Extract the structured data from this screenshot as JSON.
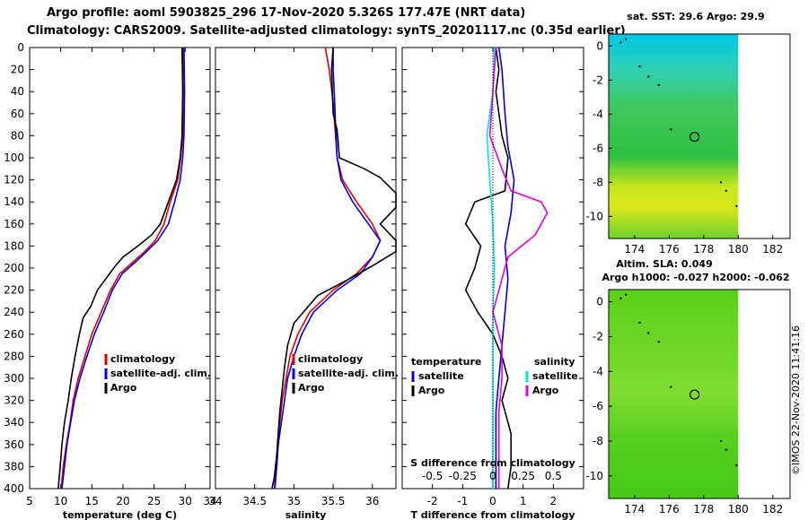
{
  "title_line1": "Argo profile: aoml 5903825_296 17-Nov-2020 5.326S 177.47E (NRT data)",
  "title_line2": "Climatology: CARS2009. Satellite-adjusted climatology: synTS_20201117.nc (0.35d earlier)",
  "footer_stamp": "©IMOS 22-Nov-2020 11:41:16",
  "colors": {
    "climatology": "#e00000",
    "satellite_clim": "#0000e0",
    "argo": "#000000",
    "satellite_diff": "#00e8e8",
    "argo_sal_diff": "#e000e0"
  },
  "chart_data": [
    {
      "type": "line",
      "title": "",
      "xlabel": "temperature (deg C)",
      "ylabel": "",
      "xlim": [
        5,
        34
      ],
      "ylim": [
        400,
        0
      ],
      "xticks": [
        5,
        10,
        15,
        20,
        25,
        30,
        34
      ],
      "yticks": [
        0,
        20,
        40,
        60,
        80,
        100,
        120,
        140,
        160,
        180,
        200,
        220,
        240,
        260,
        280,
        300,
        320,
        340,
        360,
        380,
        400
      ],
      "legend": [
        "climatology",
        "satellite-adj. clim.",
        "Argo"
      ],
      "series": [
        {
          "name": "climatology",
          "color": "#e00000",
          "points": [
            [
              29.6,
              0
            ],
            [
              29.7,
              40
            ],
            [
              29.6,
              80
            ],
            [
              29.3,
              100
            ],
            [
              28.8,
              120
            ],
            [
              27.6,
              140
            ],
            [
              26.6,
              160
            ],
            [
              25.2,
              175
            ],
            [
              23.5,
              185
            ],
            [
              21.5,
              195
            ],
            [
              19.5,
              205
            ],
            [
              18.0,
              220
            ],
            [
              16.5,
              240
            ],
            [
              15.0,
              260
            ],
            [
              13.9,
              280
            ],
            [
              12.8,
              300
            ],
            [
              12.0,
              320
            ],
            [
              11.5,
              340
            ],
            [
              10.9,
              360
            ],
            [
              10.4,
              380
            ],
            [
              10.1,
              400
            ]
          ]
        },
        {
          "name": "satellite-adj. clim.",
          "color": "#0000e0",
          "points": [
            [
              29.8,
              0
            ],
            [
              29.9,
              40
            ],
            [
              29.8,
              80
            ],
            [
              29.6,
              100
            ],
            [
              29.2,
              120
            ],
            [
              28.3,
              140
            ],
            [
              27.3,
              160
            ],
            [
              25.6,
              175
            ],
            [
              23.8,
              185
            ],
            [
              21.9,
              195
            ],
            [
              19.9,
              205
            ],
            [
              18.3,
              220
            ],
            [
              16.9,
              240
            ],
            [
              15.4,
              260
            ],
            [
              14.2,
              280
            ],
            [
              13.1,
              300
            ],
            [
              12.2,
              320
            ],
            [
              11.6,
              340
            ],
            [
              11.0,
              360
            ],
            [
              10.6,
              380
            ],
            [
              10.2,
              400
            ]
          ]
        },
        {
          "name": "Argo",
          "color": "#000000",
          "points": [
            [
              29.5,
              0
            ],
            [
              29.6,
              40
            ],
            [
              29.5,
              80
            ],
            [
              29.2,
              100
            ],
            [
              28.6,
              120
            ],
            [
              27.3,
              140
            ],
            [
              26.0,
              160
            ],
            [
              24.6,
              170
            ],
            [
              22.4,
              180
            ],
            [
              20.0,
              190
            ],
            [
              18.5,
              200
            ],
            [
              17.2,
              210
            ],
            [
              15.9,
              220
            ],
            [
              14.8,
              235
            ],
            [
              13.6,
              245
            ],
            [
              13.0,
              260
            ],
            [
              12.3,
              280
            ],
            [
              11.7,
              300
            ],
            [
              11.2,
              320
            ],
            [
              10.6,
              340
            ],
            [
              10.2,
              360
            ],
            [
              9.9,
              380
            ],
            [
              9.6,
              400
            ]
          ]
        }
      ]
    },
    {
      "type": "line",
      "title": "",
      "xlabel": "salinity",
      "ylabel": "",
      "xlim": [
        34,
        36.3
      ],
      "ylim": [
        400,
        0
      ],
      "xticks": [
        34,
        34.5,
        35,
        35.5,
        36
      ],
      "legend": [
        "climatology",
        "satellite-adj. clim.",
        "Argo"
      ],
      "series": [
        {
          "name": "climatology",
          "color": "#e00000",
          "points": [
            [
              35.4,
              0
            ],
            [
              35.45,
              20
            ],
            [
              35.5,
              50
            ],
            [
              35.52,
              70
            ],
            [
              35.55,
              100
            ],
            [
              35.62,
              120
            ],
            [
              35.8,
              140
            ],
            [
              36.0,
              160
            ],
            [
              36.1,
              175
            ],
            [
              36.0,
              190
            ],
            [
              35.8,
              205
            ],
            [
              35.5,
              220
            ],
            [
              35.2,
              240
            ],
            [
              35.05,
              260
            ],
            [
              34.95,
              280
            ],
            [
              34.9,
              300
            ],
            [
              34.85,
              320
            ],
            [
              34.82,
              340
            ],
            [
              34.8,
              360
            ],
            [
              34.78,
              380
            ],
            [
              34.76,
              400
            ]
          ]
        },
        {
          "name": "satellite-adj. clim.",
          "color": "#0000e0",
          "points": [
            [
              35.5,
              0
            ],
            [
              35.5,
              20
            ],
            [
              35.52,
              50
            ],
            [
              35.53,
              70
            ],
            [
              35.55,
              100
            ],
            [
              35.6,
              120
            ],
            [
              35.75,
              140
            ],
            [
              35.95,
              160
            ],
            [
              36.1,
              175
            ],
            [
              36.0,
              190
            ],
            [
              35.85,
              205
            ],
            [
              35.55,
              220
            ],
            [
              35.25,
              240
            ],
            [
              35.1,
              260
            ],
            [
              35.0,
              280
            ],
            [
              34.92,
              300
            ],
            [
              34.88,
              320
            ],
            [
              34.84,
              340
            ],
            [
              34.8,
              360
            ],
            [
              34.78,
              380
            ],
            [
              34.75,
              400
            ]
          ]
        },
        {
          "name": "Argo",
          "color": "#000000",
          "points": [
            [
              35.5,
              0
            ],
            [
              35.48,
              20
            ],
            [
              35.5,
              60
            ],
            [
              35.55,
              75
            ],
            [
              35.58,
              100
            ],
            [
              35.9,
              110
            ],
            [
              36.1,
              118
            ],
            [
              36.3,
              132
            ],
            [
              36.3,
              145
            ],
            [
              36.1,
              160
            ],
            [
              36.3,
              175
            ],
            [
              36.3,
              185
            ],
            [
              36.0,
              198
            ],
            [
              35.7,
              210
            ],
            [
              35.3,
              225
            ],
            [
              35.0,
              250
            ],
            [
              34.92,
              270
            ],
            [
              34.88,
              290
            ],
            [
              34.85,
              310
            ],
            [
              34.82,
              330
            ],
            [
              34.8,
              350
            ],
            [
              34.78,
              370
            ],
            [
              34.75,
              390
            ],
            [
              34.72,
              400
            ]
          ]
        }
      ]
    },
    {
      "type": "line",
      "title": "",
      "xlabel": "T difference from climatology",
      "xlabel2": "S difference from climatology",
      "ylabel": "",
      "xlim": [
        -3,
        3
      ],
      "ylim": [
        400,
        0
      ],
      "xticks": [
        -2,
        -1,
        0,
        1,
        2
      ],
      "xticks_top": [
        "-0.5",
        "-0.25",
        "0",
        "0.25",
        "0.5"
      ],
      "legend_temperature": {
        "heading": "temperature",
        "items": [
          "satellite",
          "Argo"
        ]
      },
      "legend_salinity": {
        "heading": "salinity",
        "items": [
          "satellite",
          "Argo"
        ]
      },
      "series": [
        {
          "name": "temperature satellite",
          "color": "#0000e0",
          "points": [
            [
              0.2,
              0
            ],
            [
              0.3,
              20
            ],
            [
              0.4,
              60
            ],
            [
              0.5,
              90
            ],
            [
              0.7,
              120
            ],
            [
              0.6,
              150
            ],
            [
              0.4,
              180
            ],
            [
              0.5,
              210
            ],
            [
              0.4,
              240
            ],
            [
              0.3,
              270
            ],
            [
              0.2,
              300
            ],
            [
              0.1,
              330
            ],
            [
              0.1,
              360
            ],
            [
              0.1,
              400
            ]
          ]
        },
        {
          "name": "temperature Argo",
          "color": "#000000",
          "points": [
            [
              0.1,
              0
            ],
            [
              0.2,
              20
            ],
            [
              0.1,
              40
            ],
            [
              0.3,
              80
            ],
            [
              0.5,
              100
            ],
            [
              0.4,
              130
            ],
            [
              -0.6,
              140
            ],
            [
              -0.9,
              160
            ],
            [
              -0.4,
              180
            ],
            [
              -0.6,
              200
            ],
            [
              -0.9,
              220
            ],
            [
              -0.5,
              240
            ],
            [
              0.0,
              260
            ],
            [
              0.3,
              280
            ],
            [
              0.5,
              300
            ],
            [
              0.3,
              320
            ],
            [
              0.6,
              350
            ],
            [
              0.6,
              380
            ],
            [
              0.5,
              400
            ]
          ]
        },
        {
          "name": "salinity satellite",
          "color": "#00e8e8",
          "points": [
            [
              0.05,
              0
            ],
            [
              0.0,
              40
            ],
            [
              -0.2,
              80
            ],
            [
              -0.1,
              120
            ],
            [
              0.0,
              160
            ],
            [
              0.05,
              200
            ],
            [
              0.0,
              240
            ],
            [
              0.0,
              280
            ],
            [
              0.0,
              320
            ],
            [
              0.0,
              360
            ],
            [
              0.0,
              400
            ]
          ]
        },
        {
          "name": "salinity Argo",
          "color": "#e000e0",
          "points": [
            [
              0.1,
              0
            ],
            [
              0.0,
              40
            ],
            [
              -0.1,
              80
            ],
            [
              0.3,
              110
            ],
            [
              0.6,
              130
            ],
            [
              1.6,
              140
            ],
            [
              1.8,
              150
            ],
            [
              1.4,
              170
            ],
            [
              0.5,
              190
            ],
            [
              0.3,
              210
            ],
            [
              0.0,
              240
            ],
            [
              0.3,
              270
            ],
            [
              0.3,
              300
            ],
            [
              0.2,
              330
            ],
            [
              0.2,
              360
            ],
            [
              0.2,
              400
            ]
          ]
        }
      ]
    },
    {
      "type": "heatmap",
      "title": "sat. SST: 29.6 Argo: 29.9",
      "xlabel": "",
      "ylabel": "",
      "xlim": [
        172.5,
        183
      ],
      "ylim": [
        -11.3,
        0.7
      ],
      "xticks": [
        174,
        176,
        178,
        180,
        182
      ],
      "yticks": [
        0,
        -2,
        -4,
        -6,
        -8,
        -10
      ],
      "marker": {
        "lon": 177.47,
        "lat": -5.33
      }
    },
    {
      "type": "heatmap",
      "title": "Altim. SLA: 0.049",
      "subtitle": "Argo h1000: -0.027 h2000: -0.062",
      "xlabel": "",
      "ylabel": "",
      "xlim": [
        172.5,
        183
      ],
      "ylim": [
        -11.3,
        0.7
      ],
      "xticks": [
        174,
        176,
        178,
        180,
        182
      ],
      "yticks": [
        0,
        -2,
        -4,
        -6,
        -8,
        -10
      ],
      "marker": {
        "lon": 177.47,
        "lat": -5.33
      }
    }
  ]
}
